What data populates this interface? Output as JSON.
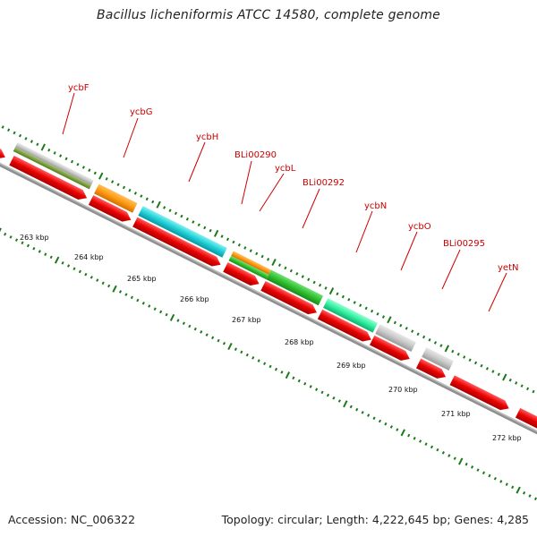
{
  "title": "Bacillus licheniformis ATCC 14580, complete genome",
  "footer": {
    "accession": "Accession: NC_006322",
    "summary": "Topology: circular; Length: 4,222,645 bp; Genes: 4,285"
  },
  "colors": {
    "gene_label": "#cc0000",
    "cds": "#e80000",
    "tick": "#1a7a1a",
    "backbone": "#888888"
  },
  "tick_labels": [
    "263 kbp",
    "264 kbp",
    "265 kbp",
    "266 kbp",
    "267 kbp",
    "268 kbp",
    "269 kbp",
    "270 kbp",
    "271 kbp",
    "272 kbp"
  ],
  "genes": [
    {
      "name": "ycbF"
    },
    {
      "name": "ycbG"
    },
    {
      "name": "ycbH"
    },
    {
      "name": "BLi00290"
    },
    {
      "name": "ycbL"
    },
    {
      "name": "BLi00292"
    },
    {
      "name": "ycbN"
    },
    {
      "name": "ycbO"
    },
    {
      "name": "BLi00295"
    },
    {
      "name": "yetN"
    }
  ]
}
